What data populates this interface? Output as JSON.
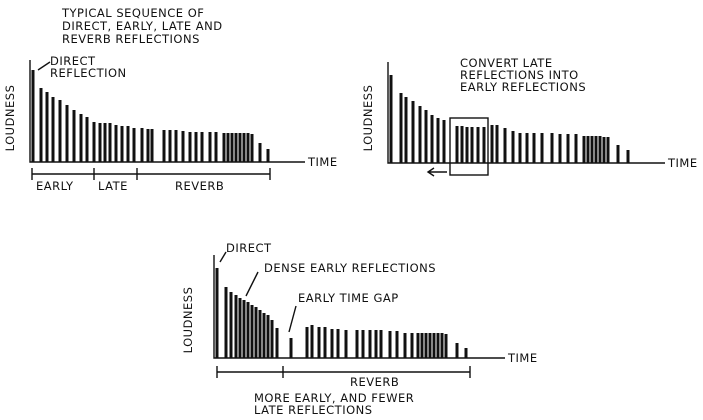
{
  "panel1": {
    "title": [
      "TYPICAL SEQUENCE OF",
      "DIRECT, EARLY, LATE AND",
      "REVERB REFLECTIONS"
    ],
    "direct_label": [
      "DIRECT",
      "REFLECTION"
    ],
    "y_label": "LOUDNESS",
    "x_label": "TIME",
    "segments": [
      "EARLY",
      "LATE",
      "REVERB"
    ]
  },
  "panel2": {
    "title": [
      "CONVERT LATE",
      "REFLECTIONS INTO",
      "EARLY REFLECTIONS"
    ],
    "y_label": "LOUDNESS",
    "x_label": "TIME"
  },
  "panel3": {
    "direct_label": "DIRECT",
    "dense_label": "DENSE EARLY REFLECTIONS",
    "gap_label": "EARLY TIME GAP",
    "y_label": "LOUDNESS",
    "x_label": "TIME",
    "segment": "REVERB",
    "caption": [
      "MORE EARLY, AND FEWER",
      "LATE REFLECTIONS"
    ]
  }
}
